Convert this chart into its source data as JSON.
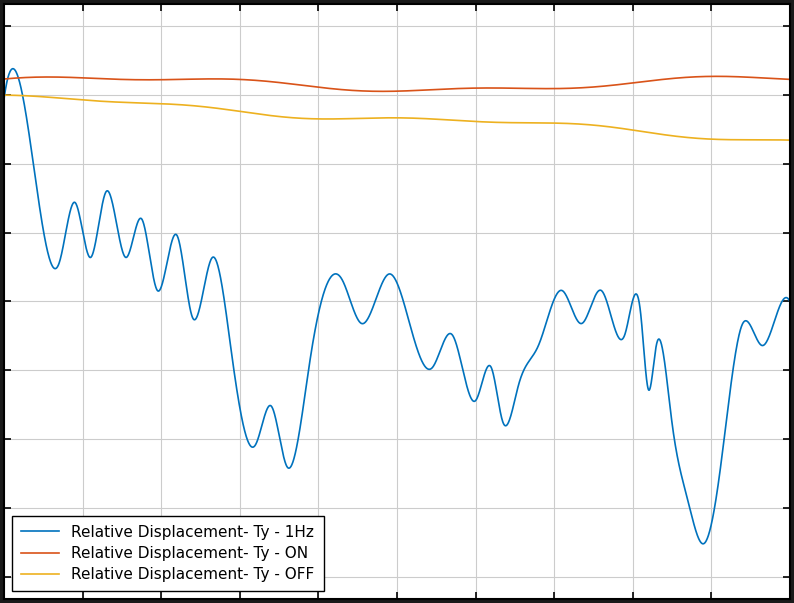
{
  "background_color": "#ffffff",
  "fig_facecolor": "#1a1a1a",
  "line_1hz_color": "#0072bd",
  "line_on_color": "#d95319",
  "line_off_color": "#edb120",
  "line_width": 1.2,
  "legend_entries": [
    "Relative Displacement- Ty - 1Hz",
    "Relative Displacement- Ty - ON",
    "Relative Displacement- Ty - OFF"
  ],
  "legend_loc": "lower left",
  "legend_fontsize": 11,
  "grid_color": "#cccccc",
  "grid_lw": 0.8,
  "tick_direction": "in",
  "spine_lw": 1.5,
  "figsize": [
    7.94,
    6.03
  ],
  "dpi": 100
}
